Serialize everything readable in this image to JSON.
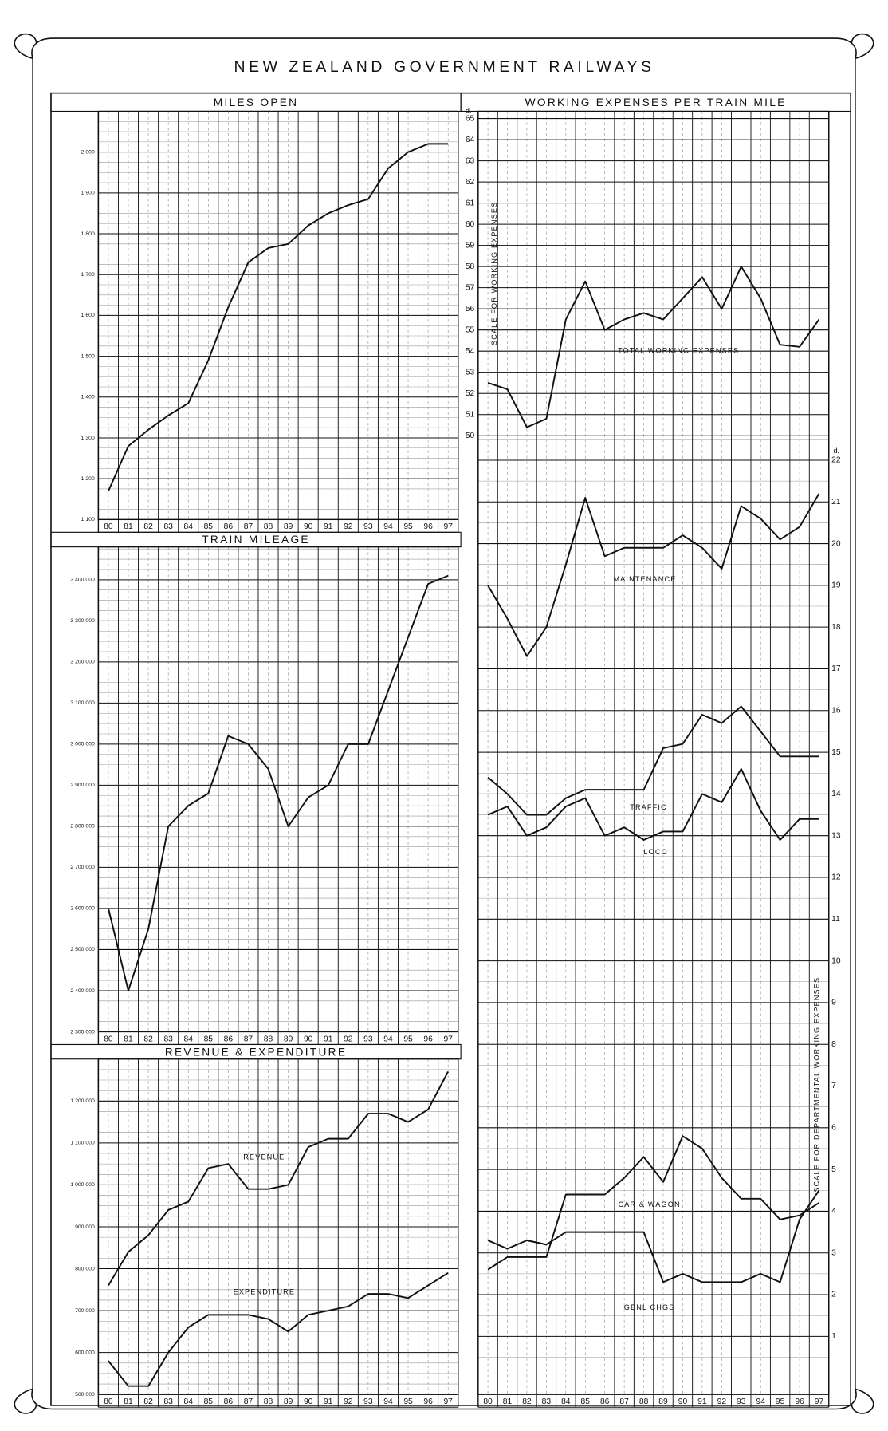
{
  "title": "NEW ZEALAND GOVERNMENT RAILWAYS",
  "chart_data": [
    {
      "type": "line",
      "title": "MILES OPEN",
      "categories": [
        "80",
        "81",
        "82",
        "83",
        "84",
        "85",
        "86",
        "87",
        "88",
        "89",
        "90",
        "91",
        "92",
        "93",
        "94",
        "95",
        "96",
        "97"
      ],
      "values": [
        1170,
        1280,
        1320,
        1355,
        1385,
        1490,
        1620,
        1730,
        1765,
        1775,
        1820,
        1850,
        1870,
        1885,
        1960,
        2000,
        2020,
        2020
      ],
      "color": "#111111",
      "ylim": [
        1100,
        2100
      ],
      "yticks": [
        {
          "value": 1100,
          "label": "1 100"
        },
        {
          "value": 1200,
          "label": "1 200"
        },
        {
          "value": 1300,
          "label": "1 300"
        },
        {
          "value": 1400,
          "label": "1 400"
        },
        {
          "value": 1500,
          "label": "1 500"
        },
        {
          "value": 1600,
          "label": "1 600"
        },
        {
          "value": 1700,
          "label": "1 700"
        },
        {
          "value": 1800,
          "label": "1 800"
        },
        {
          "value": 1900,
          "label": "1 900"
        },
        {
          "value": 2000,
          "label": "2 000"
        }
      ],
      "grid": true
    },
    {
      "type": "line",
      "title": "TRAIN MILEAGE",
      "categories": [
        "80",
        "81",
        "82",
        "83",
        "84",
        "85",
        "86",
        "87",
        "88",
        "89",
        "90",
        "91",
        "92",
        "93",
        "94",
        "95",
        "96",
        "97"
      ],
      "values": [
        2600000,
        2400000,
        2550000,
        2800000,
        2850000,
        2880000,
        3020000,
        3000000,
        2940000,
        2800000,
        2870000,
        2900000,
        3000000,
        3000000,
        3130000,
        3260000,
        3390000,
        3410000
      ],
      "color": "#111111",
      "ylim": [
        2300000,
        3480000
      ],
      "yticks": [
        {
          "value": 2300000,
          "label": "2 300 000"
        },
        {
          "value": 2400000,
          "label": "2 400 000"
        },
        {
          "value": 2500000,
          "label": "2 500 000"
        },
        {
          "value": 2600000,
          "label": "2 600 000"
        },
        {
          "value": 2700000,
          "label": "2 700 000"
        },
        {
          "value": 2800000,
          "label": "2 800 000"
        },
        {
          "value": 2900000,
          "label": "2 900 000"
        },
        {
          "value": 3000000,
          "label": "3 000 000"
        },
        {
          "value": 3100000,
          "label": "3 100 000"
        },
        {
          "value": 3200000,
          "label": "3 200 000"
        },
        {
          "value": 3300000,
          "label": "3 300 000"
        },
        {
          "value": 3400000,
          "label": "3 400 000"
        }
      ],
      "grid": true
    },
    {
      "type": "line",
      "title": "REVENUE & EXPENDITURE",
      "categories": [
        "80",
        "81",
        "82",
        "83",
        "84",
        "85",
        "86",
        "87",
        "88",
        "89",
        "90",
        "91",
        "92",
        "93",
        "94",
        "95",
        "96",
        "97"
      ],
      "series": [
        {
          "name": "REVENUE",
          "color": "#111111",
          "values": [
            760000,
            840000,
            880000,
            940000,
            960000,
            1040000,
            1050000,
            990000,
            990000,
            1000000,
            1090000,
            1110000,
            1110000,
            1170000,
            1170000,
            1150000,
            1180000,
            1270000
          ]
        },
        {
          "name": "EXPENDITURE",
          "color": "#111111",
          "values": [
            580000,
            520000,
            520000,
            600000,
            660000,
            690000,
            690000,
            690000,
            680000,
            650000,
            690000,
            700000,
            710000,
            740000,
            740000,
            730000,
            760000,
            790000
          ]
        }
      ],
      "ylim": [
        500000,
        1300000
      ],
      "yticks": [
        {
          "value": 500000,
          "label": "500 000"
        },
        {
          "value": 600000,
          "label": "600 000"
        },
        {
          "value": 700000,
          "label": "700 000"
        },
        {
          "value": 800000,
          "label": "800 000"
        },
        {
          "value": 900000,
          "label": "900 000"
        },
        {
          "value": 1000000,
          "label": "1 000 000"
        },
        {
          "value": 1100000,
          "label": "1 100 000"
        },
        {
          "value": 1200000,
          "label": "1 200 000"
        }
      ],
      "grid": true
    },
    {
      "type": "line",
      "title": "WORKING EXPENSES PER TRAIN MILE",
      "y_label": "SCALE FOR WORKING EXPENSES",
      "y2_label": "SCALE FOR DEPARTMENTAL WORKING EXPENSES",
      "y_unit": "d.",
      "y2_unit": "d.",
      "categories": [
        "80",
        "81",
        "82",
        "83",
        "84",
        "85",
        "86",
        "87",
        "88",
        "89",
        "90",
        "91",
        "92",
        "93",
        "94",
        "95",
        "96",
        "97"
      ],
      "series": [
        {
          "name": "TOTAL WORKING EXPENSES",
          "color": "#111111",
          "values": [
            52.5,
            52.2,
            50.4,
            50.8,
            55.5,
            57.3,
            55,
            55.5,
            55.8,
            55.5,
            56.5,
            57.5,
            56,
            58,
            56.5,
            54.3,
            54.2,
            55.5
          ]
        },
        {
          "name": "MAINTENANCE",
          "color": "#111111",
          "axis": "y2",
          "values": [
            19,
            18.2,
            17.3,
            18,
            19.5,
            21.1,
            19.7,
            19.9,
            19.9,
            19.9,
            20.2,
            19.9,
            19.4,
            20.9,
            20.6,
            20.1,
            20.4,
            21.2
          ]
        },
        {
          "name": "TRAFFIC",
          "color": "#111111",
          "axis": "y2",
          "values": [
            14.4,
            14,
            13.5,
            13.5,
            13.9,
            14.1,
            14.1,
            14.1,
            14.1,
            15.1,
            15.2,
            15.9,
            15.7,
            16.1,
            15.5,
            14.9,
            14.9,
            14.9
          ]
        },
        {
          "name": "LOCO",
          "color": "#111111",
          "axis": "y2",
          "values": [
            13.5,
            13.7,
            13,
            13.2,
            13.7,
            13.9,
            13,
            13.2,
            12.9,
            13.1,
            13.1,
            14,
            13.8,
            14.6,
            13.6,
            12.9,
            13.4,
            13.4
          ]
        },
        {
          "name": "CAR & WAGON",
          "color": "#111111",
          "axis": "y2",
          "values": [
            2.6,
            2.9,
            2.9,
            2.9,
            4.4,
            4.4,
            4.4,
            4.8,
            5.3,
            4.7,
            5.8,
            5.5,
            4.8,
            4.3,
            4.3,
            3.8,
            3.9,
            4.2
          ]
        },
        {
          "name": "GENL CHGS",
          "color": "#111111",
          "axis": "y2",
          "values": [
            3.3,
            3.1,
            3.3,
            3.2,
            3.5,
            3.5,
            3.5,
            3.5,
            3.5,
            2.3,
            2.5,
            2.3,
            2.3,
            2.3,
            2.5,
            2.3,
            3.8,
            4.5
          ]
        }
      ],
      "ylim": [
        50,
        65.3
      ],
      "yticks": [
        50,
        51,
        52,
        53,
        54,
        55,
        56,
        57,
        58,
        59,
        60,
        61,
        62,
        63,
        64,
        65
      ],
      "y2lim": [
        0,
        22.5
      ],
      "y2ticks": [
        1,
        2,
        3,
        4,
        5,
        6,
        7,
        8,
        9,
        10,
        11,
        12,
        13,
        14,
        15,
        16,
        17,
        18,
        19,
        20,
        21,
        22
      ],
      "grid": true
    }
  ]
}
